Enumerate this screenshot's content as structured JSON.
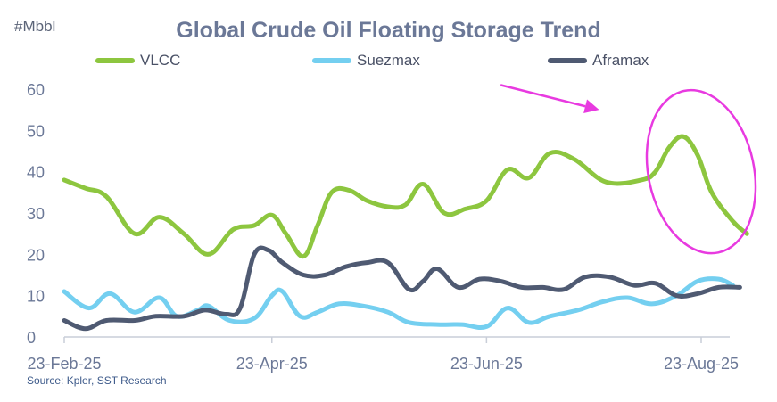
{
  "chart_data": {
    "type": "line",
    "title": "Global Crude Oil Floating Storage Trend",
    "ylabel": "#Mbbl",
    "xlabel": "",
    "ylim": [
      0,
      60
    ],
    "yticks": [
      0,
      10,
      20,
      30,
      40,
      50,
      60
    ],
    "x_range_days": [
      0,
      186
    ],
    "xtick_labels": [
      {
        "label": "23-Feb-25",
        "day": 0
      },
      {
        "label": "23-Apr-25",
        "day": 59
      },
      {
        "label": "23-Jun-25",
        "day": 120
      },
      {
        "label": "23-Aug-25",
        "day": 181
      }
    ],
    "legend_position": "top-center",
    "grid": false,
    "series": [
      {
        "name": "VLCC",
        "color": "#8dc63f",
        "points": [
          [
            0,
            38
          ],
          [
            6,
            36
          ],
          [
            12,
            34
          ],
          [
            20,
            25
          ],
          [
            27,
            29
          ],
          [
            34,
            25
          ],
          [
            41,
            20
          ],
          [
            48,
            26
          ],
          [
            54,
            27
          ],
          [
            59,
            29.5
          ],
          [
            63,
            25
          ],
          [
            68,
            19.5
          ],
          [
            72,
            27
          ],
          [
            76,
            35
          ],
          [
            81,
            35.5
          ],
          [
            86,
            33
          ],
          [
            92,
            31.5
          ],
          [
            97,
            32
          ],
          [
            102,
            37
          ],
          [
            108,
            30
          ],
          [
            114,
            31
          ],
          [
            120,
            33
          ],
          [
            126,
            40.5
          ],
          [
            132,
            38.5
          ],
          [
            138,
            44.5
          ],
          [
            145,
            43
          ],
          [
            154,
            37.5
          ],
          [
            164,
            38
          ],
          [
            168,
            40
          ],
          [
            172,
            46
          ],
          [
            176,
            48.5
          ],
          [
            180,
            44
          ],
          [
            184,
            35
          ],
          [
            190,
            28
          ],
          [
            194,
            25
          ]
        ]
      },
      {
        "name": "Suezmax",
        "color": "#74cff0",
        "points": [
          [
            0,
            11
          ],
          [
            7,
            7
          ],
          [
            13,
            10.5
          ],
          [
            20,
            6
          ],
          [
            27,
            9.5
          ],
          [
            32,
            5
          ],
          [
            38,
            6.5
          ],
          [
            41,
            7.5
          ],
          [
            47,
            4
          ],
          [
            54,
            4.5
          ],
          [
            59,
            10
          ],
          [
            62,
            11
          ],
          [
            67,
            5
          ],
          [
            72,
            6
          ],
          [
            78,
            8
          ],
          [
            85,
            7.5
          ],
          [
            92,
            6
          ],
          [
            98,
            3.5
          ],
          [
            106,
            3
          ],
          [
            113,
            3
          ],
          [
            120,
            2.5
          ],
          [
            126,
            7
          ],
          [
            132,
            3.5
          ],
          [
            138,
            5
          ],
          [
            146,
            6.5
          ],
          [
            153,
            8.5
          ],
          [
            160,
            9.5
          ],
          [
            167,
            8
          ],
          [
            174,
            10
          ],
          [
            180,
            13.5
          ],
          [
            186,
            14
          ],
          [
            190,
            12.5
          ]
        ]
      },
      {
        "name": "Aframax",
        "color": "#4f5a72",
        "points": [
          [
            0,
            4
          ],
          [
            6,
            2
          ],
          [
            12,
            4
          ],
          [
            20,
            4
          ],
          [
            26,
            5
          ],
          [
            34,
            5
          ],
          [
            40,
            6.5
          ],
          [
            46,
            5.5
          ],
          [
            50,
            7
          ],
          [
            54,
            20
          ],
          [
            58,
            21
          ],
          [
            62,
            18
          ],
          [
            68,
            15
          ],
          [
            74,
            15
          ],
          [
            80,
            17
          ],
          [
            86,
            18
          ],
          [
            92,
            18
          ],
          [
            98,
            11.5
          ],
          [
            102,
            13.5
          ],
          [
            106,
            16.5
          ],
          [
            112,
            12
          ],
          [
            118,
            14
          ],
          [
            124,
            13.5
          ],
          [
            130,
            12
          ],
          [
            136,
            12
          ],
          [
            142,
            11.5
          ],
          [
            148,
            14.5
          ],
          [
            155,
            14.5
          ],
          [
            162,
            12.5
          ],
          [
            168,
            13
          ],
          [
            174,
            10
          ],
          [
            180,
            10.5
          ],
          [
            186,
            12
          ],
          [
            192,
            12
          ]
        ]
      }
    ],
    "annotations": [
      {
        "type": "arrow",
        "color": "#e83ae0",
        "from": [
          124,
          61
        ],
        "to": [
          152,
          55
        ]
      },
      {
        "type": "ellipse",
        "color": "#e83ae0",
        "center": [
          181,
          40
        ],
        "radius_days": 15,
        "radius_values": 20
      }
    ],
    "source": "Source: Kpler, SST Research"
  }
}
